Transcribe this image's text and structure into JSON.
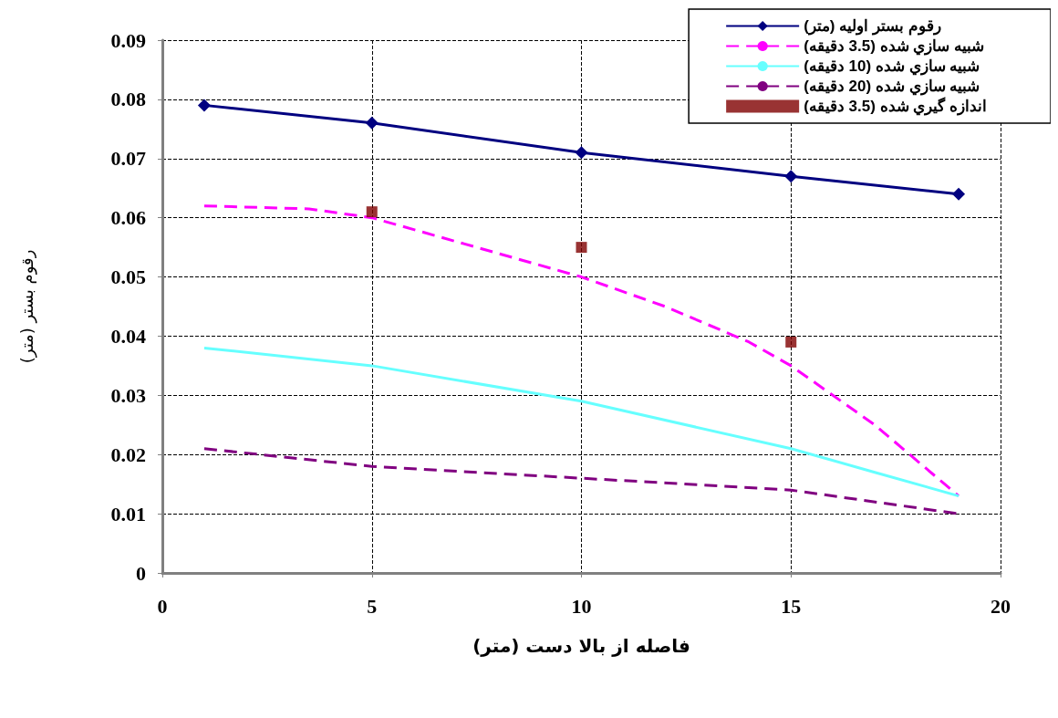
{
  "chart_data": {
    "type": "line",
    "xlabel": "فاصله از بالا دست (متر)",
    "ylabel": "رقوم بستر (متر)",
    "xlim": [
      0,
      20
    ],
    "xticks": [
      0,
      5,
      10,
      15,
      20
    ],
    "ylim": [
      0,
      0.09
    ],
    "yticks": [
      0,
      0.01,
      0.02,
      0.03,
      0.04,
      0.05,
      0.06,
      0.07,
      0.08,
      0.09
    ],
    "grid": true,
    "legend": "top right",
    "series": [
      {
        "name": "رقوم بستر اوليه (متر)",
        "color": "#000080",
        "marker": "diamond",
        "line_style": "solid",
        "x": [
          1,
          5,
          10,
          15,
          19
        ],
        "values": [
          0.079,
          0.076,
          0.071,
          0.067,
          0.064
        ]
      },
      {
        "name": "شبيه سازي شده (3.5 دقيقه)",
        "color": "#ff00ff",
        "marker": "none",
        "line_style": "dashed",
        "x": [
          1,
          3.5,
          5,
          8.5,
          10,
          12,
          14,
          15,
          17,
          19
        ],
        "values": [
          0.062,
          0.0615,
          0.06,
          0.053,
          0.05,
          0.045,
          0.039,
          0.035,
          0.025,
          0.013
        ]
      },
      {
        "name": "شبيه سازي شده (10 دقيقه)",
        "color": "#66ffff",
        "marker": "none",
        "line_style": "solid",
        "x": [
          1,
          5,
          10,
          15,
          17,
          19
        ],
        "values": [
          0.038,
          0.035,
          0.029,
          0.021,
          0.017,
          0.013
        ]
      },
      {
        "name": "شبيه سازي شده (20 دقيقه)",
        "color": "#800080",
        "marker": "none",
        "line_style": "dashed",
        "x": [
          1,
          5,
          10,
          15,
          19
        ],
        "values": [
          0.021,
          0.018,
          0.016,
          0.014,
          0.01
        ]
      },
      {
        "name": "اندازه گيري شده (3.5 دقيقه)",
        "type": "scatter",
        "color": "#800000",
        "marker": "square",
        "x": [
          5,
          10,
          15
        ],
        "values": [
          0.061,
          0.055,
          0.039
        ]
      }
    ]
  }
}
